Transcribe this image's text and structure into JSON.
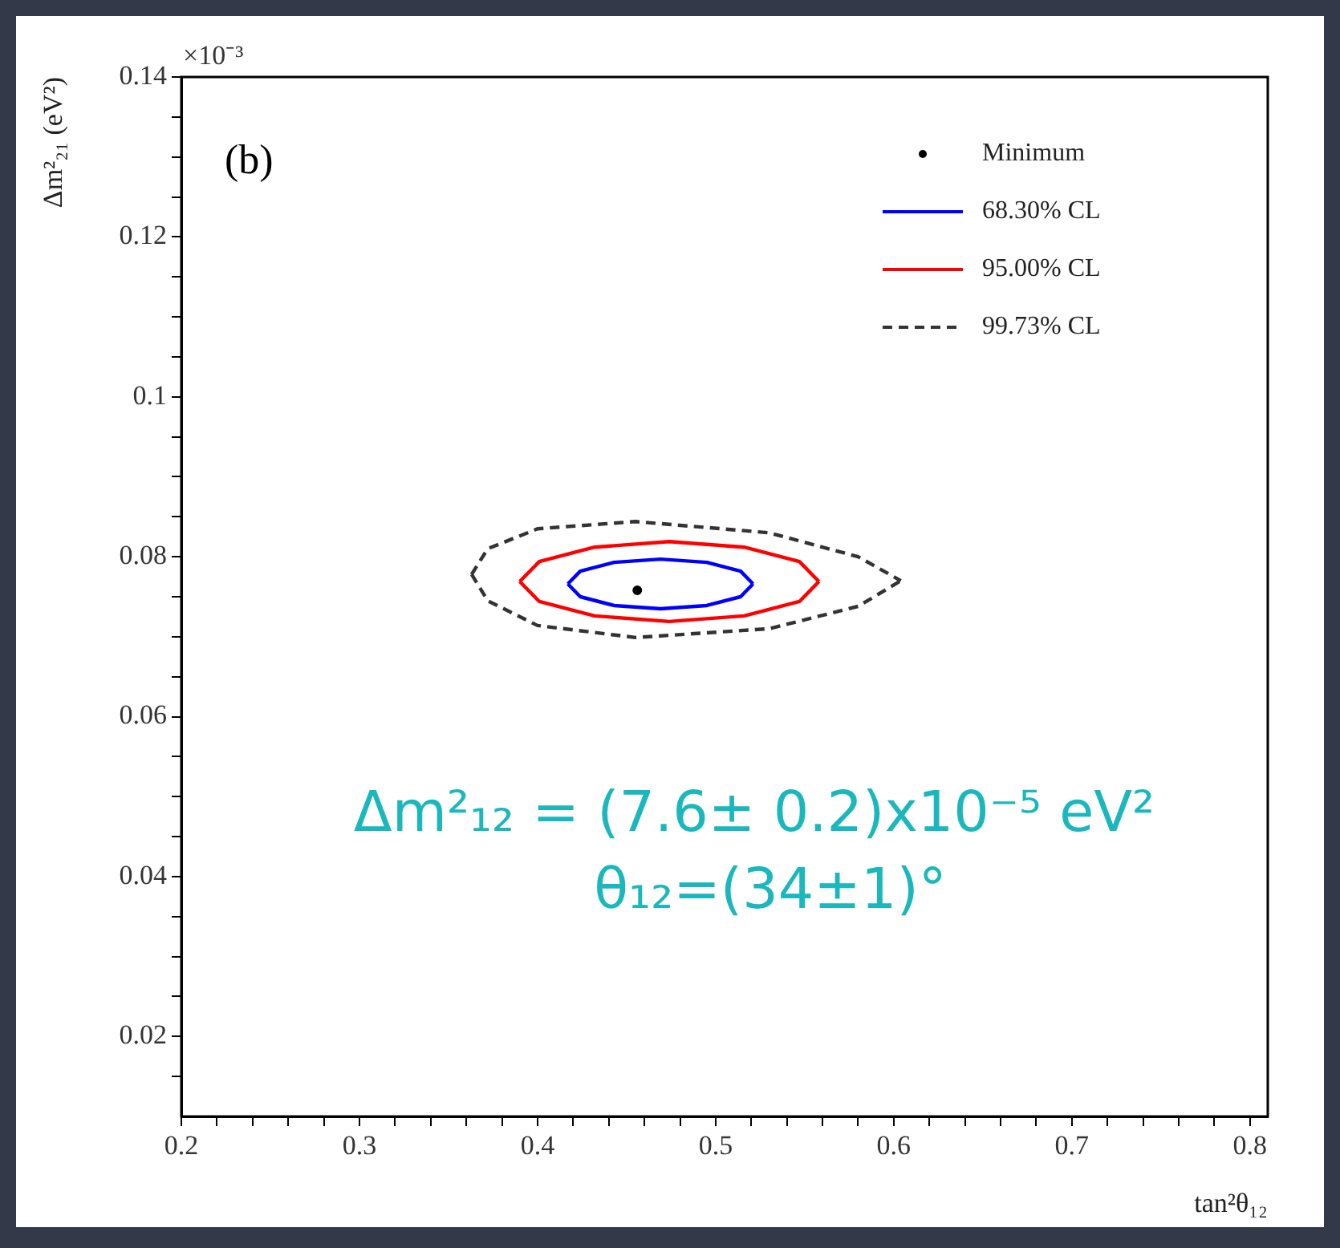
{
  "chart_data": {
    "type": "line",
    "xlabel": "tan²θ₁₂",
    "ylabel": "Δm²₂₁ (eV²)",
    "xlim": [
      0.2,
      0.81
    ],
    "ylim": [
      0.01,
      0.14
    ],
    "xticks": [
      0.2,
      {
        "value": 0.22,
        "label": null
      },
      {
        "value": 0.24,
        "label": null
      },
      {
        "value": 0.26,
        "label": null
      },
      {
        "value": 0.28,
        "label": null
      },
      0.3,
      {
        "value": 0.32,
        "label": null
      },
      {
        "value": 0.34,
        "label": null
      },
      {
        "value": 0.36,
        "label": null
      },
      {
        "value": 0.38,
        "label": null
      },
      0.4,
      {
        "value": 0.42,
        "label": null
      },
      {
        "value": 0.44,
        "label": null
      },
      {
        "value": 0.46,
        "label": null
      },
      {
        "value": 0.48,
        "label": null
      },
      0.5,
      {
        "value": 0.52,
        "label": null
      },
      {
        "value": 0.54,
        "label": null
      },
      {
        "value": 0.56,
        "label": null
      },
      {
        "value": 0.58,
        "label": null
      },
      0.6,
      {
        "value": 0.62,
        "label": null
      },
      {
        "value": 0.64,
        "label": null
      },
      {
        "value": 0.66,
        "label": null
      },
      {
        "value": 0.68,
        "label": null
      },
      0.7,
      {
        "value": 0.72,
        "label": null
      },
      {
        "value": 0.74,
        "label": null
      },
      {
        "value": 0.76,
        "label": null
      },
      {
        "value": 0.78,
        "label": null
      },
      0.8
    ],
    "yticks": [
      {
        "value": 0.015,
        "label": null
      },
      0.02,
      {
        "value": 0.025,
        "label": null
      },
      {
        "value": 0.03,
        "label": null
      },
      {
        "value": 0.035,
        "label": null
      },
      0.04,
      {
        "value": 0.045,
        "label": null
      },
      {
        "value": 0.05,
        "label": null
      },
      {
        "value": 0.055,
        "label": null
      },
      0.06,
      {
        "value": 0.065,
        "label": null
      },
      {
        "value": 0.07,
        "label": null
      },
      {
        "value": 0.075,
        "label": null
      },
      0.08,
      {
        "value": 0.085,
        "label": null
      },
      {
        "value": 0.09,
        "label": null
      },
      {
        "value": 0.095,
        "label": null
      },
      0.1,
      {
        "value": 0.105,
        "label": null
      },
      {
        "value": 0.11,
        "label": null
      },
      {
        "value": 0.115,
        "label": null
      },
      0.12,
      {
        "value": 0.125,
        "label": null
      },
      {
        "value": 0.13,
        "label": null
      },
      {
        "value": 0.135,
        "label": null
      },
      0.14
    ],
    "legend": "top right",
    "annotations": [
      "(b)",
      "×10⁻³",
      "Δm²₁₂ = (7.6± 0.2)x10⁻⁵ eV²",
      "θ₁₂=(34±1)°"
    ],
    "series": [
      {
        "name": "Minimum",
        "type": "scatter",
        "marker": "circle",
        "color": "#000000",
        "x": [
          0.456
        ],
        "values": [
          0.0758
        ]
      },
      {
        "name": "68.30% CL",
        "color": "#0000ff",
        "x": [
          0.417,
          0.424,
          0.443,
          0.469,
          0.495,
          0.514,
          0.521
        ],
        "values": [
          0.0766,
          0.0782,
          0.0793,
          0.0797,
          0.0793,
          0.0782,
          0.0766
        ]
      },
      {
        "color": "#0000ff",
        "x": [
          0.417,
          0.424,
          0.443,
          0.469,
          0.495,
          0.514,
          0.521
        ],
        "values": [
          0.0766,
          0.075,
          0.0739,
          0.0735,
          0.0739,
          0.075,
          0.0766
        ]
      },
      {
        "name": "95.00% CL",
        "color": "#ff0000",
        "x": [
          0.39,
          0.401,
          0.432,
          0.474,
          0.516,
          0.547,
          0.558
        ],
        "values": [
          0.0769,
          0.0794,
          0.0812,
          0.0819,
          0.0812,
          0.0794,
          0.0769
        ]
      },
      {
        "color": "#ff0000",
        "x": [
          0.39,
          0.401,
          0.432,
          0.474,
          0.516,
          0.547,
          0.558
        ],
        "values": [
          0.0769,
          0.0744,
          0.0726,
          0.0719,
          0.0726,
          0.0744,
          0.0769
        ]
      },
      {
        "name": "99.73% CL",
        "line_style": "dashed",
        "color": "#333333",
        "x": [
          0.363,
          0.372,
          0.4,
          0.455,
          0.53,
          0.58,
          0.604
        ],
        "values": [
          0.0778,
          0.081,
          0.0835,
          0.0844,
          0.083,
          0.08,
          0.077
        ]
      },
      {
        "line_style": "dashed",
        "color": "#333333",
        "x": [
          0.363,
          0.372,
          0.4,
          0.455,
          0.53,
          0.58,
          0.604
        ],
        "values": [
          0.0778,
          0.0745,
          0.0714,
          0.0699,
          0.071,
          0.0738,
          0.077
        ]
      }
    ]
  }
}
